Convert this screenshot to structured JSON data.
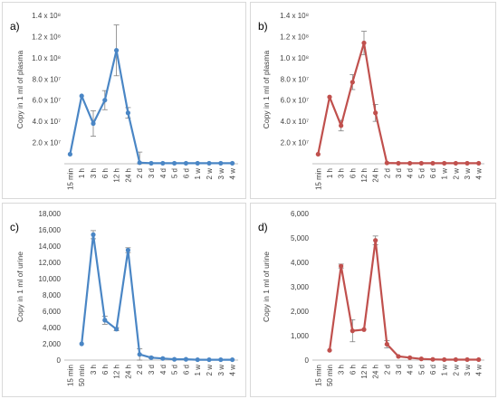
{
  "chart_data": [
    {
      "type": "line",
      "panel_label": "a)",
      "ylabel": "Copy in 1 ml of plasma",
      "ylim": [
        0,
        140000000
      ],
      "y_ticks": [
        20000000,
        40000000,
        60000000,
        80000000,
        100000000,
        120000000,
        140000000
      ],
      "y_tick_labels": [
        "2.0 x 10⁷",
        "4.0 x 10⁷",
        "6.0 x 10⁷",
        "8.0 x 10⁷",
        "1.0 x 10⁸",
        "1.2 x 10⁸",
        "1.4 x 10⁸"
      ],
      "show_zero_tick": false,
      "categories": [
        "15 min",
        "1 h",
        "3 h",
        "6 h",
        "12 h",
        "24 h",
        "2 d",
        "3 d",
        "4 d",
        "5 d",
        "6 d",
        "1 w",
        "2 w",
        "3 w",
        "4 w"
      ],
      "series_color": "#4a86c5",
      "values": [
        9000000,
        64000000,
        38000000,
        60000000,
        107000000,
        48000000,
        1000000,
        500000,
        500000,
        500000,
        500000,
        500000,
        500000,
        500000,
        500000
      ],
      "errors": [
        0,
        0,
        12000000,
        9000000,
        24000000,
        5000000,
        10000000,
        0,
        0,
        0,
        0,
        0,
        0,
        0,
        0
      ]
    },
    {
      "type": "line",
      "panel_label": "b)",
      "ylabel": "Copy in 1 ml of plasma",
      "ylim": [
        0,
        140000000
      ],
      "y_ticks": [
        20000000,
        40000000,
        60000000,
        80000000,
        100000000,
        120000000,
        140000000
      ],
      "y_tick_labels": [
        "2.0 x 10⁷",
        "4.0 x 10⁷",
        "6.0 x 10⁷",
        "8.0 x 10⁷",
        "1.0 x 10⁸",
        "1.2 x 10⁸",
        "1.4 x 10⁸"
      ],
      "show_zero_tick": false,
      "categories": [
        "15 min",
        "1 h",
        "3 h",
        "6 h",
        "12 h",
        "24 h",
        "2 d",
        "3 d",
        "4 d",
        "5 d",
        "6 d",
        "1 w",
        "2 w",
        "3 w",
        "4 w"
      ],
      "series_color": "#c0504d",
      "values": [
        9000000,
        63000000,
        36000000,
        77000000,
        114000000,
        48000000,
        800000,
        500000,
        500000,
        500000,
        500000,
        500000,
        500000,
        500000,
        500000
      ],
      "errors": [
        0,
        0,
        5000000,
        7000000,
        11000000,
        8000000,
        0,
        0,
        0,
        0,
        0,
        0,
        0,
        0,
        0
      ]
    },
    {
      "type": "line",
      "panel_label": "c)",
      "ylabel": "Copy in 1 ml of urine",
      "ylim": [
        0,
        18000
      ],
      "y_ticks": [
        0,
        2000,
        4000,
        6000,
        8000,
        10000,
        12000,
        14000,
        16000,
        18000
      ],
      "y_tick_labels": [
        "0",
        "2,000",
        "4,000",
        "6,000",
        "8,000",
        "10,000",
        "12,000",
        "14,000",
        "16,000",
        "18,000"
      ],
      "show_zero_tick": true,
      "categories": [
        "15 min",
        "50 min",
        "3 h",
        "6 h",
        "12 h",
        "24 h",
        "2 d",
        "3 d",
        "4 d",
        "5 d",
        "6 d",
        "1 w",
        "2 w",
        "3 w",
        "4 w"
      ],
      "series_color": "#4a86c5",
      "values": [
        null,
        2000,
        15400,
        4900,
        3800,
        13500,
        700,
        300,
        200,
        100,
        100,
        50,
        50,
        50,
        50
      ],
      "errors": [
        0,
        0,
        500,
        500,
        200,
        300,
        700,
        100,
        0,
        0,
        0,
        0,
        0,
        0,
        0
      ]
    },
    {
      "type": "line",
      "panel_label": "d)",
      "ylabel": "Copy in 1 ml of urine",
      "ylim": [
        0,
        6000
      ],
      "y_ticks": [
        0,
        1000,
        2000,
        3000,
        4000,
        5000,
        6000
      ],
      "y_tick_labels": [
        "0",
        "1,000",
        "2,000",
        "3,000",
        "4,000",
        "5,000",
        "6,000"
      ],
      "show_zero_tick": true,
      "categories": [
        "15 min",
        "50 min",
        "3 h",
        "6 h",
        "12 h",
        "24 h",
        "2 d",
        "3 d",
        "4 d",
        "5 d",
        "6 d",
        "1 w",
        "2 w",
        "3 w",
        "4 w"
      ],
      "series_color": "#c0504d",
      "values": [
        null,
        400,
        3850,
        1200,
        1250,
        4900,
        650,
        150,
        100,
        50,
        30,
        20,
        20,
        20,
        20
      ],
      "errors": [
        0,
        0,
        80,
        450,
        0,
        180,
        150,
        0,
        0,
        0,
        0,
        0,
        0,
        0,
        0
      ]
    }
  ]
}
